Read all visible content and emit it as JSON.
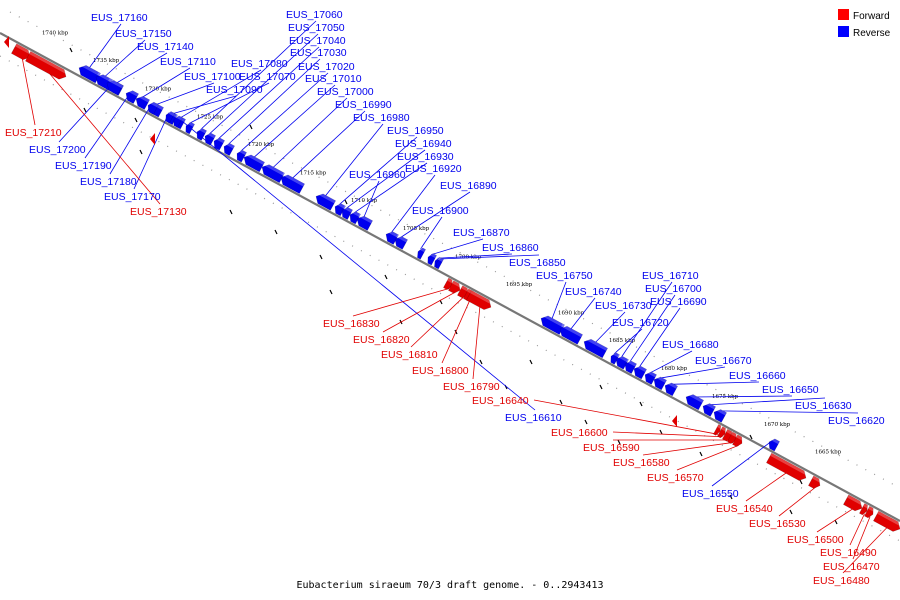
{
  "caption": "Eubacterium siraeum 70/3 draft genome. - 0..2943413",
  "legend": [
    {
      "label": "Forward",
      "color": "#ff0000"
    },
    {
      "label": "Reverse",
      "color": "#0000ff"
    }
  ],
  "colors": {
    "forward": "#e00000",
    "reverse": "#0000ee",
    "axis": "#666666"
  },
  "kbp_ticks": [
    "1740 kbp",
    "1735 kbp",
    "1730 kbp",
    "1725 kbp",
    "1720 kbp",
    "1715 kbp",
    "1710 kbp",
    "1705 kbp",
    "1700 kbp",
    "1695 kbp",
    "1690 kbp",
    "1685 kbp",
    "1680 kbp",
    "1675 kbp",
    "1670 kbp",
    "1665 kbp"
  ],
  "genes": [
    {
      "id": "EUS_17160",
      "strand": "reverse"
    },
    {
      "id": "EUS_17150",
      "strand": "reverse"
    },
    {
      "id": "EUS_17140",
      "strand": "reverse"
    },
    {
      "id": "EUS_17110",
      "strand": "reverse"
    },
    {
      "id": "EUS_17100",
      "strand": "reverse"
    },
    {
      "id": "EUS_17090",
      "strand": "reverse"
    },
    {
      "id": "EUS_17080",
      "strand": "reverse"
    },
    {
      "id": "EUS_17070",
      "strand": "reverse"
    },
    {
      "id": "EUS_17060",
      "strand": "reverse"
    },
    {
      "id": "EUS_17050",
      "strand": "reverse"
    },
    {
      "id": "EUS_17040",
      "strand": "reverse"
    },
    {
      "id": "EUS_17030",
      "strand": "reverse"
    },
    {
      "id": "EUS_17020",
      "strand": "reverse"
    },
    {
      "id": "EUS_17010",
      "strand": "reverse"
    },
    {
      "id": "EUS_17000",
      "strand": "reverse"
    },
    {
      "id": "EUS_16990",
      "strand": "reverse"
    },
    {
      "id": "EUS_16980",
      "strand": "reverse"
    },
    {
      "id": "EUS_16950",
      "strand": "reverse"
    },
    {
      "id": "EUS_16940",
      "strand": "reverse"
    },
    {
      "id": "EUS_16930",
      "strand": "reverse"
    },
    {
      "id": "EUS_16960",
      "strand": "reverse"
    },
    {
      "id": "EUS_16920",
      "strand": "reverse"
    },
    {
      "id": "EUS_16890",
      "strand": "reverse"
    },
    {
      "id": "EUS_16900",
      "strand": "reverse"
    },
    {
      "id": "EUS_16870",
      "strand": "reverse"
    },
    {
      "id": "EUS_16860",
      "strand": "reverse"
    },
    {
      "id": "EUS_16850",
      "strand": "reverse"
    },
    {
      "id": "EUS_16750",
      "strand": "reverse"
    },
    {
      "id": "EUS_16740",
      "strand": "reverse"
    },
    {
      "id": "EUS_16730",
      "strand": "reverse"
    },
    {
      "id": "EUS_16720",
      "strand": "reverse"
    },
    {
      "id": "EUS_16710",
      "strand": "reverse"
    },
    {
      "id": "EUS_16700",
      "strand": "reverse"
    },
    {
      "id": "EUS_16690",
      "strand": "reverse"
    },
    {
      "id": "EUS_16680",
      "strand": "reverse"
    },
    {
      "id": "EUS_16670",
      "strand": "reverse"
    },
    {
      "id": "EUS_16660",
      "strand": "reverse"
    },
    {
      "id": "EUS_16650",
      "strand": "reverse"
    },
    {
      "id": "EUS_16630",
      "strand": "reverse"
    },
    {
      "id": "EUS_16620",
      "strand": "reverse"
    },
    {
      "id": "EUS_16550",
      "strand": "reverse"
    },
    {
      "id": "EUS_17200",
      "strand": "reverse"
    },
    {
      "id": "EUS_17190",
      "strand": "reverse"
    },
    {
      "id": "EUS_17180",
      "strand": "reverse"
    },
    {
      "id": "EUS_17170",
      "strand": "reverse"
    },
    {
      "id": "EUS_16610",
      "strand": "reverse"
    },
    {
      "id": "EUS_17210",
      "strand": "forward"
    },
    {
      "id": "EUS_17130",
      "strand": "forward"
    },
    {
      "id": "EUS_16830",
      "strand": "forward"
    },
    {
      "id": "EUS_16820",
      "strand": "forward"
    },
    {
      "id": "EUS_16810",
      "strand": "forward"
    },
    {
      "id": "EUS_16800",
      "strand": "forward"
    },
    {
      "id": "EUS_16790",
      "strand": "forward"
    },
    {
      "id": "EUS_16640",
      "strand": "forward"
    },
    {
      "id": "EUS_16600",
      "strand": "forward"
    },
    {
      "id": "EUS_16590",
      "strand": "forward"
    },
    {
      "id": "EUS_16580",
      "strand": "forward"
    },
    {
      "id": "EUS_16570",
      "strand": "forward"
    },
    {
      "id": "EUS_16540",
      "strand": "forward"
    },
    {
      "id": "EUS_16530",
      "strand": "forward"
    },
    {
      "id": "EUS_16500",
      "strand": "forward"
    },
    {
      "id": "EUS_16490",
      "strand": "forward"
    },
    {
      "id": "EUS_16470",
      "strand": "forward"
    },
    {
      "id": "EUS_16480",
      "strand": "forward"
    }
  ]
}
